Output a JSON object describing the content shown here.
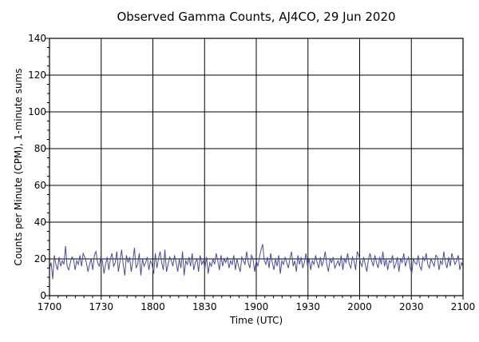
{
  "chart_data": {
    "type": "line",
    "title": "Observed Gamma Counts, AJ4CO, 29 Jun 2020",
    "xlabel": "Time (UTC)",
    "ylabel": "Counts per Minute (CPM), 1-minute sums",
    "x_tick_labels": [
      "1700",
      "1730",
      "1800",
      "1830",
      "1900",
      "1930",
      "2000",
      "2030",
      "2100"
    ],
    "y_ticks": [
      0,
      20,
      40,
      60,
      80,
      100,
      120,
      140
    ],
    "ylim": [
      0,
      140
    ],
    "x_range": [
      "1700",
      "2100"
    ],
    "grid": true,
    "series_color": "#4a4a9a",
    "series": [
      {
        "values": [
          15,
          18,
          9,
          22,
          17,
          14,
          21,
          16,
          19,
          17,
          27,
          16,
          14,
          18,
          21,
          20,
          14,
          19,
          17,
          22,
          16,
          23,
          21,
          18,
          13,
          17,
          20,
          14,
          22,
          24,
          18,
          16,
          21,
          19,
          12,
          17,
          21,
          14,
          20,
          23,
          16,
          18,
          24,
          13,
          19,
          25,
          17,
          11,
          22,
          18,
          21,
          13,
          19,
          26,
          15,
          17,
          23,
          11,
          20,
          16,
          18,
          21,
          14,
          19,
          17,
          12,
          23,
          15,
          20,
          24,
          18,
          14,
          25,
          13,
          17,
          21,
          19,
          16,
          22,
          18,
          13,
          20,
          15,
          24,
          11,
          19,
          17,
          21,
          16,
          23,
          14,
          18,
          20,
          13,
          22,
          17,
          19,
          15,
          21,
          12,
          18,
          16,
          20,
          17,
          23,
          19,
          14,
          22,
          16,
          20,
          18,
          21,
          15,
          19,
          17,
          22,
          14,
          20,
          16,
          13,
          21,
          19,
          17,
          24,
          18,
          15,
          22,
          20,
          13,
          19,
          16,
          21,
          25,
          28,
          19,
          17,
          21,
          15,
          23,
          18,
          14,
          20,
          16,
          22,
          12,
          19,
          17,
          21,
          18,
          15,
          20,
          24,
          16,
          19,
          13,
          22,
          17,
          21,
          15,
          18,
          23,
          16,
          20,
          14,
          19,
          17,
          22,
          18,
          15,
          21,
          16,
          19,
          24,
          17,
          13,
          20,
          18,
          21,
          15,
          17,
          19,
          16,
          22,
          14,
          20,
          18,
          23,
          17,
          15,
          21,
          19,
          14,
          24,
          22,
          18,
          16,
          21,
          17,
          13,
          20,
          23,
          19,
          16,
          22,
          18,
          15,
          21,
          17,
          24,
          16,
          20,
          14,
          19,
          18,
          22,
          15,
          17,
          21,
          13,
          20,
          18,
          23,
          16,
          19,
          21,
          15,
          12,
          20,
          18,
          17,
          22,
          16,
          14,
          21,
          19,
          23,
          17,
          15,
          20,
          18,
          16,
          22,
          21,
          14,
          19,
          17,
          24,
          18,
          15,
          21,
          16,
          23,
          20,
          17,
          19,
          22,
          14,
          18,
          16
        ]
      }
    ]
  }
}
